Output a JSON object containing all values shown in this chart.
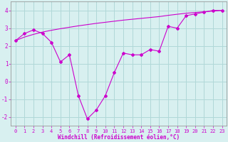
{
  "hours": [
    0,
    1,
    2,
    3,
    4,
    5,
    6,
    7,
    8,
    9,
    10,
    11,
    12,
    13,
    14,
    15,
    16,
    17,
    18,
    19,
    20,
    21,
    22,
    23
  ],
  "windchill": [
    2.3,
    2.7,
    2.9,
    2.7,
    2.2,
    1.1,
    1.5,
    -0.8,
    -2.1,
    -1.6,
    -0.8,
    0.5,
    1.6,
    1.5,
    1.5,
    1.8,
    1.7,
    3.1,
    3.0,
    3.7,
    3.8,
    3.9,
    4.0,
    4.0
  ],
  "temp_line": [
    2.3,
    2.5,
    2.65,
    2.78,
    2.88,
    2.97,
    3.05,
    3.13,
    3.2,
    3.27,
    3.33,
    3.39,
    3.45,
    3.5,
    3.55,
    3.6,
    3.65,
    3.72,
    3.78,
    3.84,
    3.88,
    3.92,
    3.96,
    4.0
  ],
  "line_color": "#cc00cc",
  "bg_color": "#d8f0f0",
  "grid_color": "#b0d8d8",
  "xlabel": "Windchill (Refroidissement éolien,°C)",
  "ylim": [
    -2.5,
    4.5
  ],
  "xlim": [
    -0.5,
    23.5
  ],
  "yticks": [
    -2,
    -1,
    0,
    1,
    2,
    3,
    4
  ],
  "xticks": [
    0,
    1,
    2,
    3,
    4,
    5,
    6,
    7,
    8,
    9,
    10,
    11,
    12,
    13,
    14,
    15,
    16,
    17,
    18,
    19,
    20,
    21,
    22,
    23
  ],
  "xlabel_fontsize": 5.5,
  "tick_fontsize": 5.0
}
